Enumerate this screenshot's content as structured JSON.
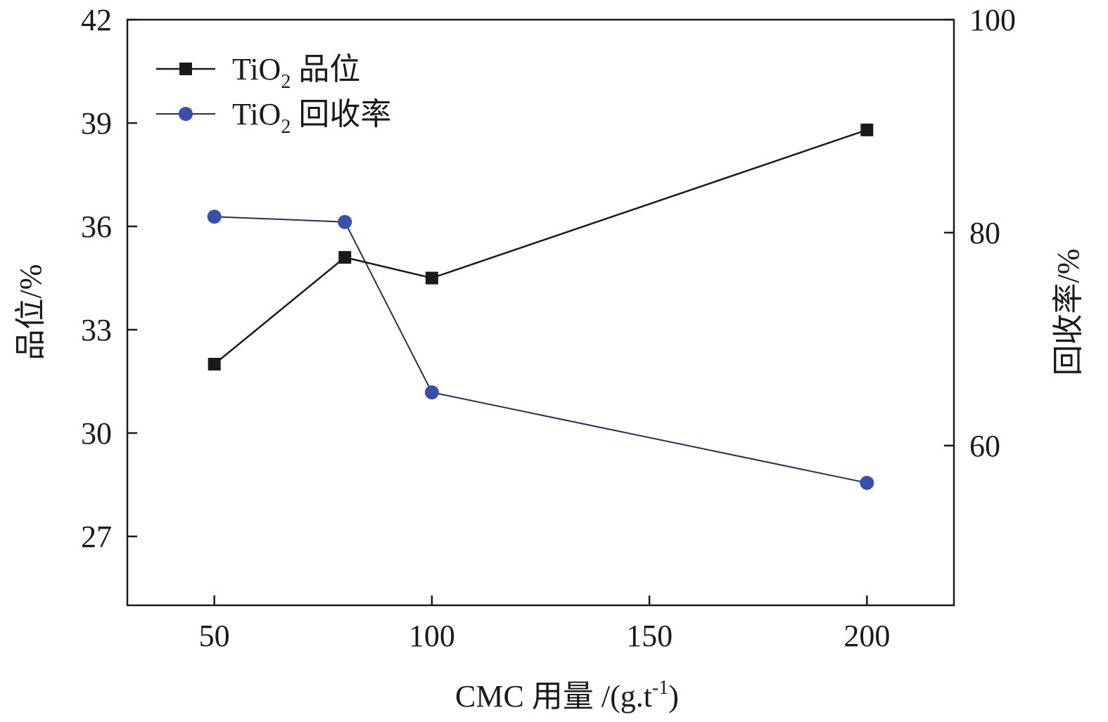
{
  "chart_data": {
    "type": "line",
    "x": [
      50,
      80,
      100,
      200
    ],
    "xlim": [
      30,
      220
    ],
    "xticks": [
      50,
      100,
      150,
      200
    ],
    "xlabel": {
      "main": "CMC 用量 /(g.t",
      "sup": "-1",
      "tail": ")"
    },
    "y_left": {
      "label": "品位/%",
      "lim": [
        25,
        42
      ],
      "ticks": [
        27,
        30,
        33,
        36,
        39,
        42
      ]
    },
    "y_right": {
      "label": "回收率/%",
      "lim": [
        45,
        100
      ],
      "ticks": [
        60,
        80,
        100
      ]
    },
    "series": [
      {
        "name": "TiO2 品位",
        "name_parts": {
          "base": "TiO",
          "sub": "2",
          "rest": " 品位"
        },
        "axis": "left",
        "marker": "square",
        "color": "#1a1a1a",
        "values": [
          32.0,
          35.1,
          34.5,
          38.8
        ]
      },
      {
        "name": "TiO2 回收率",
        "name_parts": {
          "base": "TiO",
          "sub": "2",
          "rest": " 回收率"
        },
        "axis": "right",
        "marker": "circle",
        "color": "#3a4fa8",
        "line_color": "#2a2f55",
        "values": [
          81.5,
          81.0,
          65.0,
          56.5
        ]
      }
    ],
    "grid": false,
    "legend_position": "top-left"
  }
}
